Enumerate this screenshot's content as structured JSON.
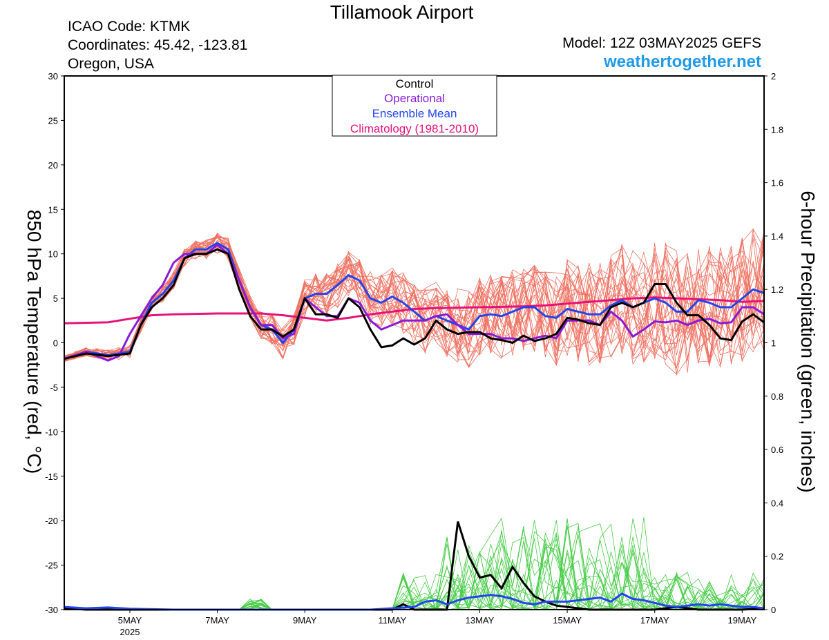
{
  "header": {
    "title": "Tillamook Airport",
    "icao": "ICAO Code: KTMK",
    "coords": "Coordinates: 45.42, -123.81",
    "region": "Oregon, USA",
    "model": "Model: 12Z 03MAY2025 GEFS",
    "site": "weathertogether.net"
  },
  "chart_data": {
    "type": "line",
    "title": "Tillamook Airport",
    "xlabel": "",
    "ylabel": "850 hPa Temperature (red, °C)",
    "y2label": "6-hour Precipitation (green, inches)",
    "xlim": [
      3.5,
      19.5
    ],
    "ylim": [
      -30,
      30
    ],
    "y2lim": [
      0,
      2
    ],
    "x_ticks": [
      5,
      7,
      9,
      11,
      13,
      15,
      17,
      19
    ],
    "x_tick_labels": [
      "5MAY",
      "7MAY",
      "9MAY",
      "11MAY",
      "13MAY",
      "15MAY",
      "17MAY",
      "19MAY"
    ],
    "x_sub_label": "2025",
    "y_ticks": [
      30,
      25,
      20,
      15,
      10,
      5,
      0,
      -5,
      -10,
      -15,
      -20,
      -25,
      -30
    ],
    "y2_ticks": [
      "2",
      "1.8",
      "1.6",
      "1.4",
      "1.2",
      "1",
      "0.8",
      "0.6",
      "0.4",
      "0.2",
      "0"
    ],
    "legend": {
      "placement": "top-center",
      "entries": [
        "Control",
        "Operational",
        "Ensemble Mean",
        "Climatology (1981-2010)"
      ]
    },
    "colors": {
      "control": "#000000",
      "operational": "#8a1ad6",
      "mean": "#2244ee",
      "climatology": "#e6127a",
      "members": "#f07060",
      "precip_members": "#44cc44",
      "site": "#1e9be8"
    },
    "series": [
      {
        "name": "Control",
        "x": [
          3.5,
          4,
          4.5,
          5,
          5.25,
          5.5,
          5.75,
          6,
          6.25,
          6.5,
          6.75,
          7,
          7.25,
          7.5,
          7.75,
          8,
          8.25,
          8.5,
          8.75,
          9,
          9.25,
          9.5,
          9.75,
          10,
          10.25,
          10.5,
          10.75,
          11,
          11.25,
          11.5,
          11.75,
          12,
          12.25,
          12.5,
          12.75,
          13,
          13.25,
          13.5,
          13.75,
          14,
          14.25,
          14.5,
          14.75,
          15,
          15.25,
          15.5,
          15.75,
          16,
          16.25,
          16.5,
          16.75,
          17,
          17.25,
          17.5,
          17.75,
          18,
          18.25,
          18.5,
          18.75,
          19,
          19.25,
          19.5
        ],
        "y": [
          -1.8,
          -1.2,
          -1.5,
          -1.2,
          2,
          4,
          5,
          6.5,
          9.5,
          10,
          10,
          10.5,
          10,
          6,
          3,
          1.5,
          1.5,
          0.7,
          1.5,
          5,
          3.2,
          3.2,
          2.8,
          5,
          4,
          1.5,
          -0.5,
          -0.3,
          0.5,
          -0.2,
          0.5,
          2.5,
          1.5,
          1,
          1.2,
          1.2,
          0.5,
          0.3,
          0,
          0.8,
          0.2,
          0.5,
          1,
          2.8,
          2.6,
          2.2,
          2,
          4,
          4.5,
          4,
          4.5,
          6.6,
          6.6,
          4.5,
          3.1,
          3.1,
          2,
          0.5,
          0.3,
          2.4,
          3.2,
          2.3
        ]
      },
      {
        "name": "Operational",
        "x": [
          3.5,
          4,
          4.25,
          4.5,
          4.75,
          5,
          5.25,
          5.5,
          5.75,
          6,
          6.25,
          6.5,
          6.75,
          7,
          7.25,
          7.5,
          7.75,
          8,
          8.25,
          8.5,
          8.75,
          9,
          9.25,
          9.5,
          9.75,
          10,
          10.25,
          10.5,
          10.75,
          11,
          11.25,
          11.5,
          11.75,
          12,
          12.25,
          12.5,
          12.75,
          13,
          13.25,
          13.5,
          13.75,
          14,
          14.25,
          14.5,
          14.75,
          15,
          15.25,
          15.5,
          15.75,
          16,
          16.25,
          16.5,
          16.75,
          17,
          17.25,
          17.5,
          17.75,
          18,
          18.25,
          18.5,
          18.75,
          19,
          19.25,
          19.5
        ],
        "y": [
          -1.8,
          -1,
          -1.5,
          -2,
          -1.5,
          1,
          3,
          5,
          6.5,
          9,
          10,
          10,
          10,
          11,
          10,
          7,
          4,
          2,
          2,
          0.5,
          1,
          5,
          4,
          3,
          3,
          5,
          4.5,
          2.5,
          1.5,
          2,
          2.5,
          2.5,
          2.5,
          3,
          3.2,
          2,
          1,
          1,
          1,
          0.5,
          0.5,
          0.2,
          0.5,
          0.8,
          0.5,
          2.5,
          2.5,
          2.5,
          2,
          3.5,
          2.5,
          0.7,
          1.5,
          2.4,
          2.3,
          2.5,
          2,
          2.5,
          2.7,
          2.2,
          2.3,
          4,
          4,
          3.2
        ]
      },
      {
        "name": "Ensemble Mean",
        "x": [
          3.5,
          4,
          4.5,
          5,
          5.25,
          5.5,
          5.75,
          6,
          6.25,
          6.5,
          6.75,
          7,
          7.25,
          7.5,
          7.75,
          8,
          8.25,
          8.5,
          8.75,
          9,
          9.25,
          9.5,
          9.75,
          10,
          10.25,
          10.5,
          10.75,
          11,
          11.25,
          11.5,
          11.75,
          12,
          12.25,
          12.5,
          12.75,
          13,
          13.25,
          13.5,
          13.75,
          14,
          14.25,
          14.5,
          14.75,
          15,
          15.25,
          15.5,
          15.75,
          16,
          16.25,
          16.5,
          16.75,
          17,
          17.25,
          17.5,
          17.75,
          18,
          18.25,
          18.5,
          18.75,
          19,
          19.25,
          19.5
        ],
        "y": [
          -1.8,
          -1,
          -1.4,
          -1,
          2,
          4.5,
          5.5,
          7,
          9.5,
          10.5,
          10.5,
          11.2,
          10.5,
          7,
          4,
          2,
          1.5,
          0,
          1.5,
          5,
          5.5,
          5.5,
          6.5,
          7.6,
          7,
          5,
          4.5,
          5.2,
          4.5,
          3.5,
          2.5,
          3,
          2.5,
          2,
          1.5,
          3,
          3.2,
          3,
          3.5,
          4,
          4,
          3,
          2.8,
          3.8,
          3.5,
          3.2,
          3.2,
          4.2,
          4.8,
          4,
          4.5,
          5,
          4.5,
          3.5,
          3.5,
          4.8,
          4.5,
          4,
          4,
          5,
          6,
          5.6
        ]
      },
      {
        "name": "Climatology (1981-2010)",
        "x": [
          3.5,
          4.5,
          5,
          5.5,
          6,
          7,
          8,
          8.5,
          9,
          9.5,
          10,
          10.5,
          11,
          11.5,
          12,
          13,
          14,
          14.5,
          15,
          15.5,
          16,
          16.5,
          17,
          17.5,
          18,
          18.5,
          19,
          19.5
        ],
        "y": [
          2.2,
          2.3,
          2.7,
          3.1,
          3.2,
          3.3,
          3.3,
          3.1,
          2.8,
          2.5,
          2.8,
          3.2,
          3.5,
          3.8,
          3.9,
          4.0,
          4.1,
          4.2,
          4.4,
          4.6,
          4.8,
          5.0,
          5.1,
          5.0,
          4.9,
          4.8,
          4.6,
          4.7
        ]
      }
    ],
    "precip_series": [
      {
        "name": "Control",
        "x": [
          3.5,
          4,
          5,
          6,
          7,
          8,
          9,
          10,
          10.5,
          11,
          11.25,
          11.5,
          11.75,
          12,
          12.25,
          12.5,
          12.75,
          13,
          13.25,
          13.5,
          13.75,
          14,
          14.25,
          14.5,
          14.75,
          15,
          15.5,
          16,
          16.5,
          17,
          17.5,
          18,
          18.5,
          19,
          19.5
        ],
        "y": [
          0.005,
          0,
          0,
          0,
          0,
          0,
          0,
          0,
          0,
          0,
          0.02,
          0,
          0,
          0,
          0,
          0.33,
          0.2,
          0.12,
          0.13,
          0.08,
          0.16,
          0.1,
          0.05,
          0.03,
          0.015,
          0.01,
          0,
          0,
          0,
          0,
          0.01,
          0,
          0,
          0,
          0.005
        ]
      },
      {
        "name": "Ensemble Mean",
        "x": [
          3.5,
          4,
          4.5,
          5,
          6,
          7,
          8,
          9,
          10,
          10.5,
          11,
          11.5,
          11.75,
          12,
          12.25,
          12.5,
          12.75,
          13,
          13.25,
          13.5,
          13.75,
          14,
          14.25,
          14.5,
          14.75,
          15,
          15.25,
          15.5,
          15.75,
          16,
          16.25,
          16.5,
          16.75,
          17,
          17.25,
          17.5,
          17.75,
          18,
          18.25,
          18.5,
          18.75,
          19,
          19.25,
          19.5
        ],
        "y": [
          0.01,
          0.005,
          0.008,
          0.003,
          0,
          0,
          0,
          0,
          0,
          0,
          0.005,
          0.01,
          0.03,
          0.035,
          0.02,
          0.035,
          0.045,
          0.05,
          0.055,
          0.05,
          0.04,
          0.025,
          0.02,
          0.03,
          0.03,
          0.03,
          0.035,
          0.04,
          0.045,
          0.03,
          0.06,
          0.04,
          0.035,
          0.025,
          0.015,
          0.01,
          0.015,
          0.02,
          0.015,
          0.02,
          0.015,
          0.01,
          0.01,
          0.005
        ]
      }
    ]
  }
}
